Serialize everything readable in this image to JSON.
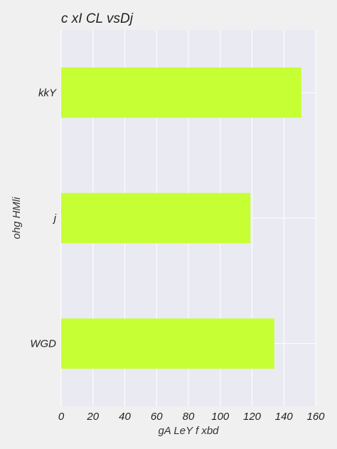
{
  "chart_data": {
    "type": "bar",
    "orientation": "horizontal",
    "title": "c xI  CL vsDj",
    "xlabel": "gA LeY f xbd",
    "ylabel": "ohg HMli",
    "categories": [
      "kkY",
      "j",
      "WGD"
    ],
    "values": [
      151,
      119,
      134
    ],
    "xlim": [
      0,
      160
    ],
    "xticks": [
      0,
      20,
      40,
      60,
      80,
      100,
      120,
      140,
      160
    ],
    "grid": true,
    "legend": "none",
    "colors": {
      "bar": "#c6ff33",
      "plot_background": "#eaeaf2",
      "page_background": "#f0f0f0",
      "grid": "#ffffff"
    }
  }
}
